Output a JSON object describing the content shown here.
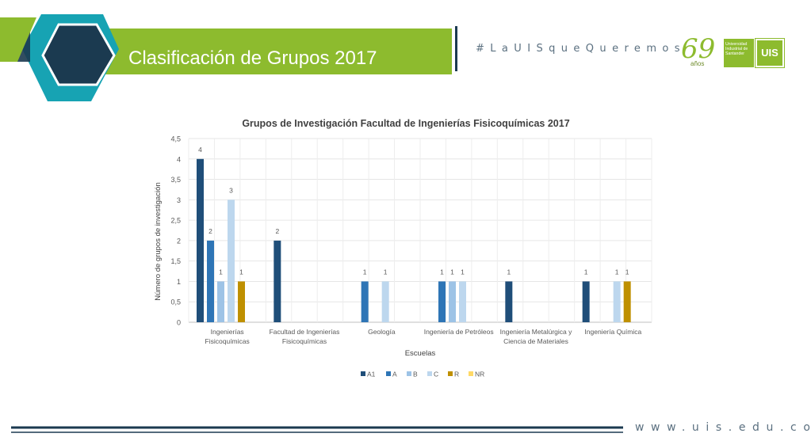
{
  "slide": {
    "title": "Clasificación de Grupos 2017",
    "hashtag": "#LaUISqueQueremos",
    "footer_url": "www.uis.edu.co",
    "logo_years": "69",
    "logo_years_suffix": "años",
    "logo_university": "Universidad Industrial de Santander",
    "logo_mark": "UIS"
  },
  "colors": {
    "banner_green": "#8dbb2e",
    "hexagon_teal": "#17a3b3",
    "hexagon_navy": "#1b3a50",
    "divider_navy": "#1b3a50"
  },
  "chart_data": {
    "type": "bar",
    "title": "Grupos de Investigación Facultad de Ingenierías Fisicoquímicas 2017",
    "xlabel": "Escuelas",
    "ylabel": "Número de grupos de investigación",
    "ylim": [
      0,
      4.5
    ],
    "yticks": [
      "0",
      "0,5",
      "1",
      "1,5",
      "2",
      "2,5",
      "3",
      "3,5",
      "4",
      "4,5"
    ],
    "grid": true,
    "legend_position": "bottom",
    "categories": [
      [
        "Ingenierías",
        "Fisicoquímicas"
      ],
      [
        "Facultad de Ingenierías",
        "Fisicoquímicas"
      ],
      [
        "Geología"
      ],
      [
        "Ingeniería de Petróleos"
      ],
      [
        "Ingeniería Metalúrgica y",
        "Ciencia de Materiales"
      ],
      [
        "Ingeniería Química"
      ]
    ],
    "series": [
      {
        "name": "A1",
        "color": "#1f4e79",
        "values": [
          4,
          2,
          null,
          null,
          1,
          1
        ]
      },
      {
        "name": "A",
        "color": "#2e75b6",
        "values": [
          2,
          null,
          1,
          1,
          null,
          null
        ]
      },
      {
        "name": "B",
        "color": "#9dc3e6",
        "values": [
          1,
          null,
          null,
          1,
          null,
          null
        ]
      },
      {
        "name": "C",
        "color": "#bdd7ee",
        "values": [
          3,
          null,
          1,
          1,
          null,
          1
        ]
      },
      {
        "name": "R",
        "color": "#bf9000",
        "values": [
          1,
          null,
          null,
          null,
          null,
          1
        ]
      },
      {
        "name": "NR",
        "color": "#ffd966",
        "values": [
          null,
          null,
          null,
          null,
          null,
          null
        ]
      }
    ]
  }
}
